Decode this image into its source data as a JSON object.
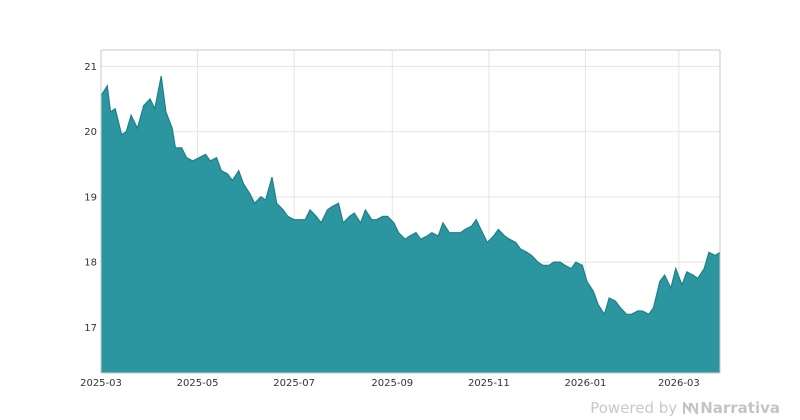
{
  "footer": {
    "powered_by": "Powered by",
    "brand_name": "Narrativa",
    "brand_icon": "narrativa-logo-icon"
  },
  "colors": {
    "area_fill": "#2b969f",
    "area_line": "#1f7f88",
    "grid": "#e4e4e4",
    "axis": "#c8c8c8"
  },
  "chart_data": {
    "type": "area",
    "title": "",
    "xlabel": "",
    "ylabel": "",
    "grid": true,
    "legend": "none",
    "ylim": [
      16.3,
      21.25
    ],
    "xlim": [
      "2025-03-01",
      "2026-03-27"
    ],
    "x_ticks": [
      "2025-03",
      "2025-05",
      "2025-07",
      "2025-09",
      "2025-11",
      "2026-01",
      "2026-03"
    ],
    "y_ticks": [
      17,
      18,
      19,
      20,
      21
    ],
    "series": [
      {
        "x": [
          "2025-03-01",
          "2025-03-05",
          "2025-03-07",
          "2025-03-10",
          "2025-03-14",
          "2025-03-17",
          "2025-03-20",
          "2025-03-24",
          "2025-03-28",
          "2025-04-01",
          "2025-04-04",
          "2025-04-08",
          "2025-04-11",
          "2025-04-15",
          "2025-04-17",
          "2025-04-21",
          "2025-04-24",
          "2025-04-28",
          "2025-05-02",
          "2025-05-06",
          "2025-05-09",
          "2025-05-13",
          "2025-05-16",
          "2025-05-20",
          "2025-05-23",
          "2025-05-27",
          "2025-05-30",
          "2025-06-03",
          "2025-06-06",
          "2025-06-10",
          "2025-06-13",
          "2025-06-17",
          "2025-06-20",
          "2025-06-24",
          "2025-06-27",
          "2025-07-01",
          "2025-07-04",
          "2025-07-08",
          "2025-07-11",
          "2025-07-15",
          "2025-07-18",
          "2025-07-22",
          "2025-07-25",
          "2025-07-29",
          "2025-08-01",
          "2025-08-05",
          "2025-08-08",
          "2025-08-12",
          "2025-08-15",
          "2025-08-19",
          "2025-08-22",
          "2025-08-26",
          "2025-08-29",
          "2025-09-02",
          "2025-09-05",
          "2025-09-09",
          "2025-09-12",
          "2025-09-16",
          "2025-09-19",
          "2025-09-23",
          "2025-09-26",
          "2025-09-30",
          "2025-10-03",
          "2025-10-07",
          "2025-10-10",
          "2025-10-14",
          "2025-10-17",
          "2025-10-21",
          "2025-10-24",
          "2025-10-28",
          "2025-10-31",
          "2025-11-04",
          "2025-11-07",
          "2025-11-11",
          "2025-11-14",
          "2025-11-18",
          "2025-11-21",
          "2025-11-25",
          "2025-11-28",
          "2025-12-02",
          "2025-12-05",
          "2025-12-09",
          "2025-12-12",
          "2025-12-16",
          "2025-12-19",
          "2025-12-23",
          "2025-12-26",
          "2025-12-30",
          "2026-01-02",
          "2026-01-06",
          "2026-01-09",
          "2026-01-13",
          "2026-01-16",
          "2026-01-20",
          "2026-01-23",
          "2026-01-27",
          "2026-01-30",
          "2026-02-03",
          "2026-02-06",
          "2026-02-10",
          "2026-02-13",
          "2026-02-17",
          "2026-02-20",
          "2026-02-24",
          "2026-02-27",
          "2026-03-03",
          "2026-03-06",
          "2026-03-10",
          "2026-03-13",
          "2026-03-17",
          "2026-03-20",
          "2026-03-24",
          "2026-03-27"
        ],
        "values": [
          20.55,
          20.7,
          20.3,
          20.35,
          19.95,
          20.0,
          20.25,
          20.05,
          20.4,
          20.5,
          20.35,
          20.85,
          20.3,
          20.05,
          19.75,
          19.75,
          19.6,
          19.55,
          19.6,
          19.65,
          19.55,
          19.6,
          19.4,
          19.35,
          19.25,
          19.4,
          19.2,
          19.05,
          18.9,
          19.0,
          18.95,
          19.3,
          18.9,
          18.8,
          18.7,
          18.65,
          18.65,
          18.65,
          18.8,
          18.7,
          18.6,
          18.8,
          18.85,
          18.9,
          18.6,
          18.7,
          18.75,
          18.6,
          18.8,
          18.65,
          18.65,
          18.7,
          18.7,
          18.6,
          18.45,
          18.35,
          18.4,
          18.45,
          18.35,
          18.4,
          18.45,
          18.4,
          18.6,
          18.45,
          18.45,
          18.45,
          18.5,
          18.55,
          18.65,
          18.45,
          18.3,
          18.4,
          18.5,
          18.4,
          18.35,
          18.3,
          18.2,
          18.15,
          18.1,
          18.0,
          17.95,
          17.95,
          18.0,
          18.0,
          17.95,
          17.9,
          18.0,
          17.95,
          17.7,
          17.55,
          17.35,
          17.2,
          17.45,
          17.4,
          17.3,
          17.2,
          17.2,
          17.25,
          17.25,
          17.2,
          17.3,
          17.7,
          17.8,
          17.6,
          17.9,
          17.65,
          17.85,
          17.8,
          17.75,
          17.9,
          18.15,
          18.1,
          18.15
        ]
      }
    ]
  }
}
